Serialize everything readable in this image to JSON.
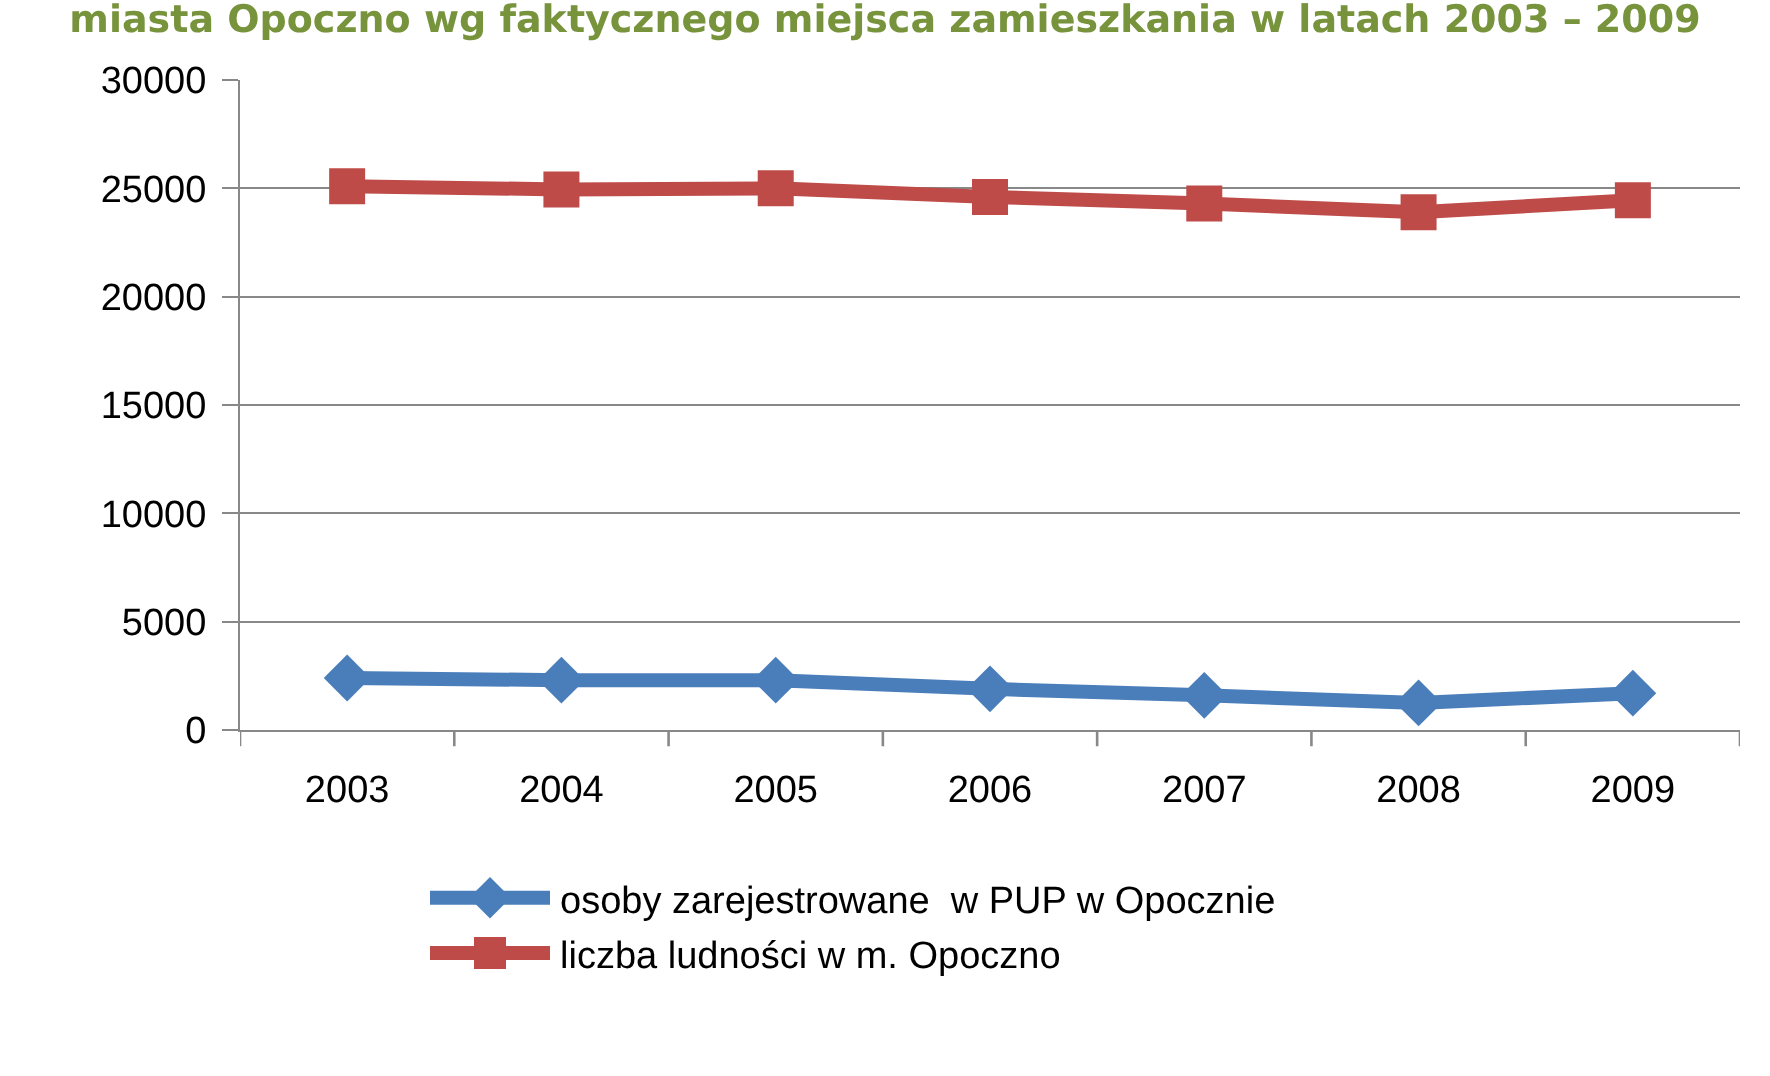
{
  "chart_data": {
    "type": "line",
    "title": "miasta Opoczno wg faktycznego miejsca zamieszkania w latach 2003 – 2009",
    "categories": [
      "2003",
      "2004",
      "2005",
      "2006",
      "2007",
      "2008",
      "2009"
    ],
    "series": [
      {
        "name": "osoby zarejestrowane  w PUP w Opocznie",
        "color": "#4a7ebb",
        "marker": "diamond",
        "values": [
          2400,
          2300,
          2300,
          1900,
          1600,
          1250,
          1700
        ]
      },
      {
        "name": "liczba ludności w m. Opoczno",
        "color": "#be4b48",
        "marker": "square",
        "values": [
          25100,
          24950,
          25000,
          24600,
          24300,
          23900,
          24450
        ]
      }
    ],
    "ylim": [
      0,
      30000
    ],
    "yticks": [
      0,
      5000,
      10000,
      15000,
      20000,
      25000,
      30000
    ],
    "grid": "y",
    "legend": "bottom"
  }
}
